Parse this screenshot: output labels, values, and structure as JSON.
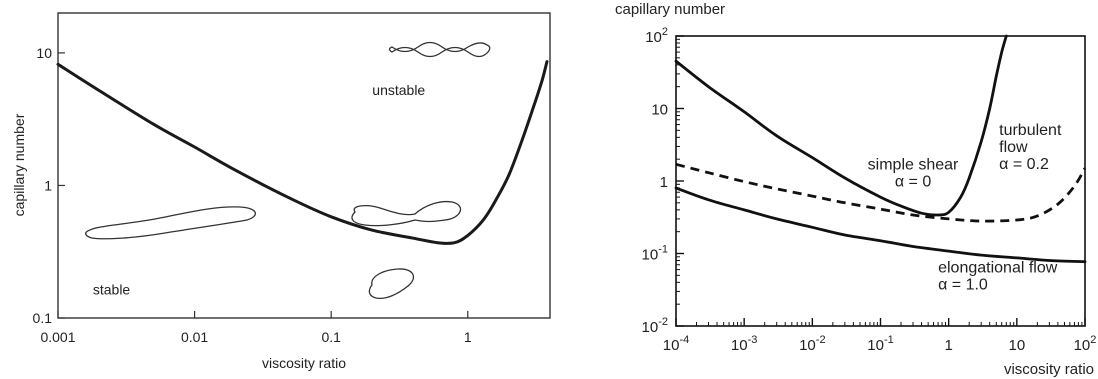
{
  "chart_data": [
    {
      "type": "line",
      "xlabel": "viscosity ratio",
      "ylabel": "capillary number",
      "xscale": "log",
      "yscale": "log",
      "xlim": [
        0.001,
        4
      ],
      "ylim": [
        0.1,
        20
      ],
      "xticks": [
        {
          "value": 0.001,
          "label": "0.001"
        },
        {
          "value": 0.01,
          "label": "0.01"
        },
        {
          "value": 0.1,
          "label": "0.1"
        },
        {
          "value": 1,
          "label": "1"
        }
      ],
      "yticks": [
        {
          "value": 0.1,
          "label": "0.1"
        },
        {
          "value": 1,
          "label": "1"
        },
        {
          "value": 10,
          "label": "10"
        }
      ],
      "series": [
        {
          "x": [
            0.001,
            0.002,
            0.005,
            0.01,
            0.02,
            0.05,
            0.1,
            0.2,
            0.4,
            0.6,
            0.8,
            1.0,
            1.3,
            1.6,
            2.0,
            2.5,
            3.0,
            3.5,
            3.8
          ],
          "y": [
            8.2,
            5.2,
            2.9,
            1.95,
            1.3,
            0.8,
            0.58,
            0.46,
            0.4,
            0.37,
            0.37,
            0.42,
            0.55,
            0.77,
            1.2,
            2.2,
            3.8,
            6.2,
            8.6
          ]
        }
      ],
      "annotations": [
        {
          "text": "unstable",
          "x": 0.2,
          "y": 4.8
        },
        {
          "text": "stable",
          "x": 0.0018,
          "y": 0.15
        }
      ]
    },
    {
      "type": "line",
      "xlabel": "viscosity ratio",
      "ylabel": "capillary number",
      "xscale": "log",
      "yscale": "log",
      "xlim": [
        0.0001,
        100
      ],
      "ylim": [
        0.01,
        100
      ],
      "xticks": [
        {
          "value": 0.0001,
          "base": "10",
          "exp": "-4"
        },
        {
          "value": 0.001,
          "base": "10",
          "exp": "-3"
        },
        {
          "value": 0.01,
          "base": "10",
          "exp": "-2"
        },
        {
          "value": 0.1,
          "base": "10",
          "exp": "-1"
        },
        {
          "value": 1,
          "base": "1",
          "exp": ""
        },
        {
          "value": 10,
          "base": "10",
          "exp": ""
        },
        {
          "value": 100,
          "base": "10",
          "exp": "2"
        }
      ],
      "yticks": [
        {
          "value": 0.01,
          "base": "10",
          "exp": "-2"
        },
        {
          "value": 0.1,
          "base": "10",
          "exp": "-1"
        },
        {
          "value": 1,
          "base": "1",
          "exp": ""
        },
        {
          "value": 10,
          "base": "10",
          "exp": ""
        },
        {
          "value": 100,
          "base": "10",
          "exp": "2"
        }
      ],
      "series": [
        {
          "dash": false,
          "x": [
            0.0001,
            0.0003,
            0.001,
            0.003,
            0.01,
            0.03,
            0.1,
            0.2,
            0.4,
            0.7,
            1.0,
            1.5,
            2.0,
            3.0,
            4.0,
            5.0,
            6.0,
            7.0
          ],
          "y": [
            45,
            20,
            9,
            4.2,
            2.1,
            1.1,
            0.6,
            0.45,
            0.36,
            0.34,
            0.37,
            0.6,
            1.1,
            3.5,
            10,
            28,
            60,
            100
          ]
        },
        {
          "dash": true,
          "x": [
            0.0001,
            0.0003,
            0.001,
            0.003,
            0.01,
            0.03,
            0.1,
            0.3,
            1,
            3,
            10,
            20,
            40,
            70,
            100
          ],
          "y": [
            1.7,
            1.3,
            0.98,
            0.78,
            0.62,
            0.5,
            0.41,
            0.34,
            0.3,
            0.28,
            0.29,
            0.33,
            0.48,
            0.85,
            1.5
          ]
        },
        {
          "dash": false,
          "x": [
            0.0001,
            0.0003,
            0.001,
            0.003,
            0.01,
            0.03,
            0.1,
            0.3,
            1,
            3,
            10,
            30,
            100
          ],
          "y": [
            0.8,
            0.55,
            0.4,
            0.3,
            0.23,
            0.18,
            0.15,
            0.125,
            0.108,
            0.095,
            0.087,
            0.08,
            0.077
          ]
        }
      ],
      "annotations": [
        {
          "lines": [
            "simple shear",
            "α = 0"
          ],
          "x": 0.3,
          "y": 1.45,
          "align": "middle"
        },
        {
          "lines": [
            "turbulent",
            "flow",
            "α = 0.2"
          ],
          "x": 5.5,
          "y": 4.3,
          "align": "start"
        },
        {
          "lines": [
            "elongational flow",
            "α = 1.0"
          ],
          "x": 0.7,
          "y": 0.055,
          "align": "start"
        }
      ]
    }
  ]
}
